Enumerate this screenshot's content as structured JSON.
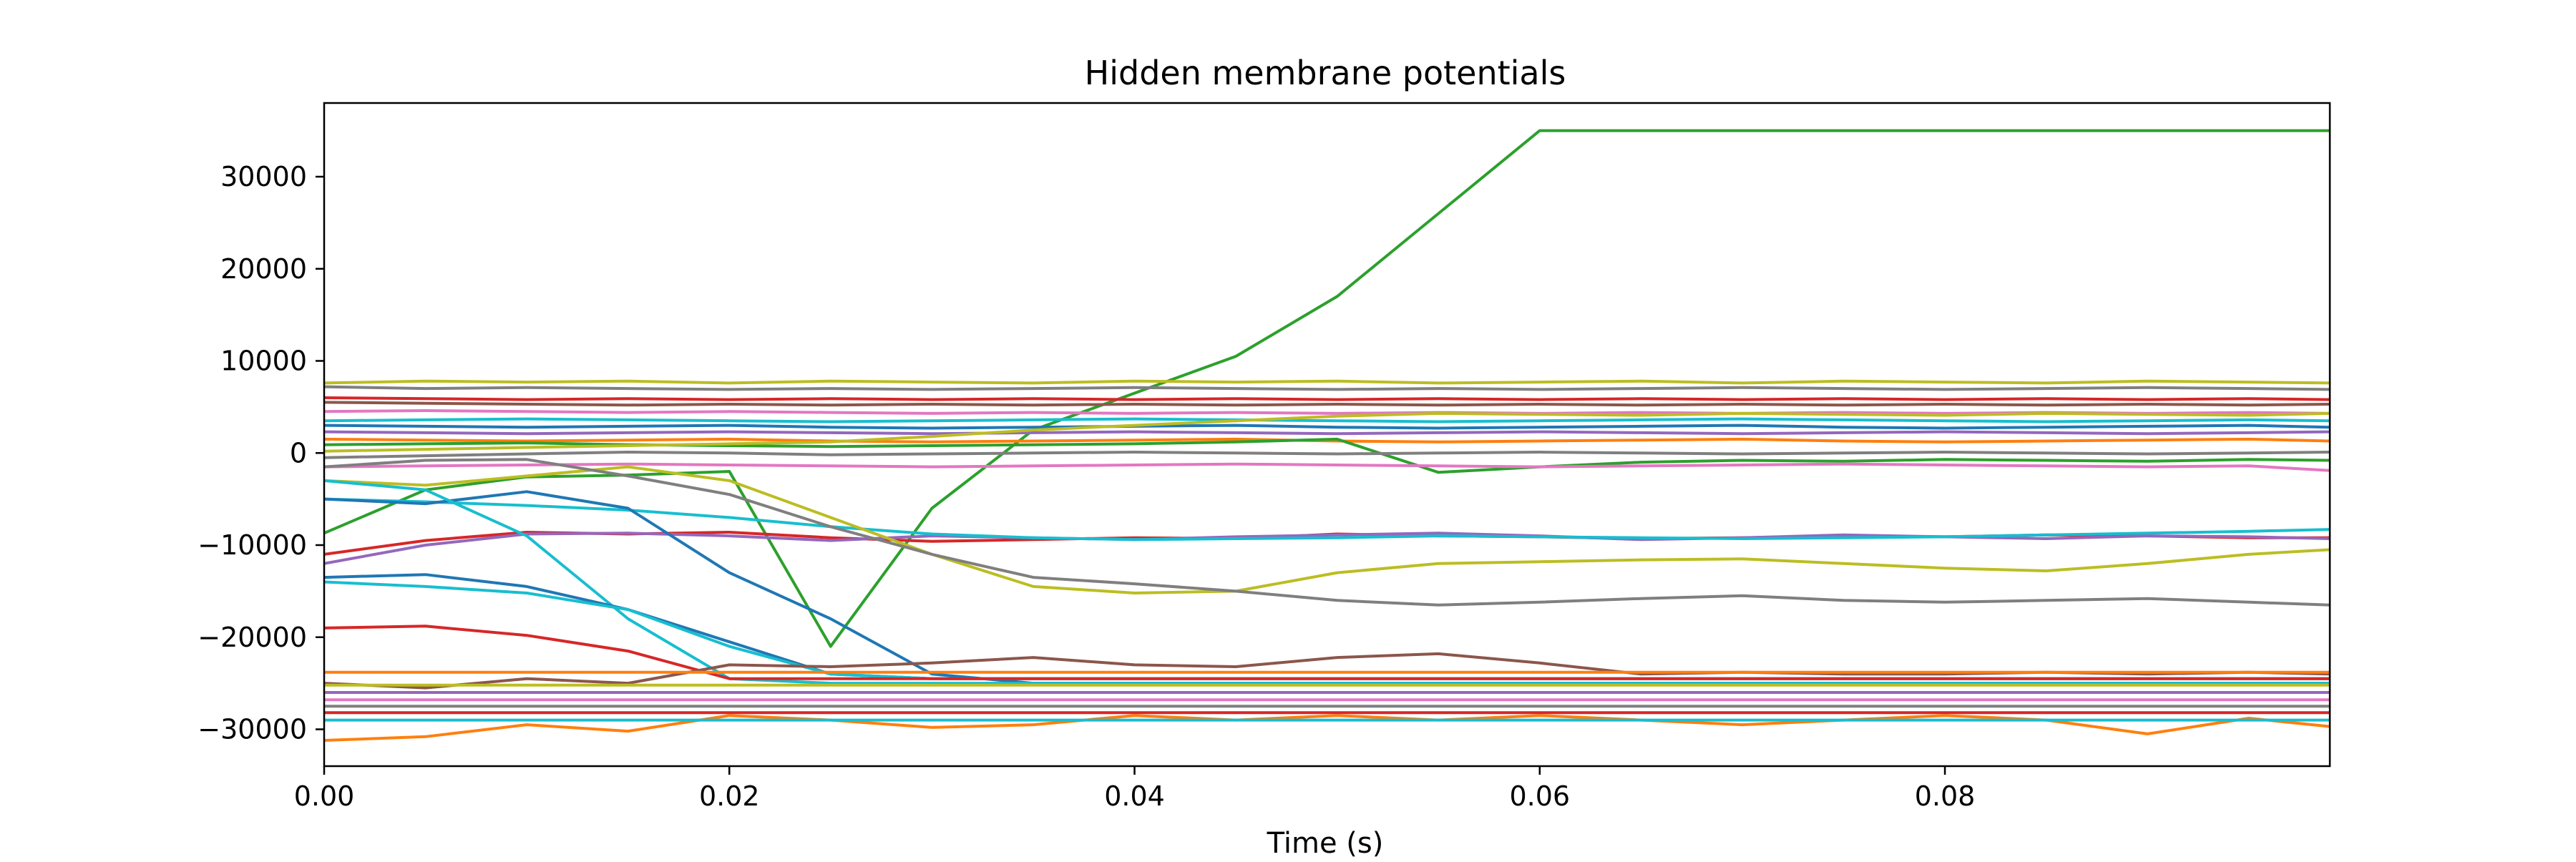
{
  "chart_data": {
    "type": "line",
    "title": "Hidden membrane potentials",
    "xlabel": "Time (s)",
    "ylabel": "",
    "xlim": [
      0.0,
      0.099
    ],
    "ylim": [
      -34000,
      38000
    ],
    "xticks": [
      0.0,
      0.02,
      0.04,
      0.06,
      0.08
    ],
    "xtick_labels": [
      "0.00",
      "0.02",
      "0.04",
      "0.06",
      "0.08"
    ],
    "yticks": [
      30000,
      20000,
      10000,
      0,
      -10000,
      -20000,
      -30000
    ],
    "ytick_labels": [
      "30000",
      "20000",
      "10000",
      "0",
      "−10000",
      "−20000",
      "−30000"
    ],
    "grid": false,
    "legend": "none",
    "colors": [
      "#1f77b4",
      "#ff7f0e",
      "#2ca02c",
      "#d62728",
      "#9467bd",
      "#8c564b",
      "#e377c2",
      "#7f7f7f",
      "#bcbd22",
      "#17becf"
    ],
    "x": [
      0.0,
      0.005,
      0.01,
      0.015,
      0.02,
      0.025,
      0.03,
      0.035,
      0.04,
      0.045,
      0.05,
      0.055,
      0.06,
      0.065,
      0.07,
      0.075,
      0.08,
      0.085,
      0.09,
      0.095,
      0.099
    ],
    "series": [
      {
        "color": "#2ca02c",
        "values": [
          -8700,
          -4000,
          -2600,
          -2400,
          -2000,
          -21000,
          -6000,
          2500,
          6500,
          10500,
          17000,
          26000,
          35000,
          35000,
          35000,
          35000,
          35000,
          35000,
          35000,
          35000,
          35000
        ]
      },
      {
        "color": "#bcbd22",
        "values": [
          7600,
          7800,
          7700,
          7800,
          7600,
          7800,
          7700,
          7600,
          7800,
          7700,
          7800,
          7600,
          7700,
          7800,
          7600,
          7800,
          7700,
          7600,
          7800,
          7700,
          7600
        ]
      },
      {
        "color": "#7f7f7f",
        "values": [
          7200,
          7000,
          7100,
          7000,
          6900,
          7000,
          6900,
          7000,
          7100,
          7000,
          6900,
          7000,
          6900,
          7000,
          7100,
          7000,
          6900,
          7000,
          7100,
          7000,
          6900
        ]
      },
      {
        "color": "#d62728",
        "values": [
          6000,
          5900,
          5800,
          5900,
          5800,
          5900,
          5800,
          5900,
          5800,
          5900,
          5800,
          5900,
          5800,
          5900,
          5800,
          5900,
          5800,
          5900,
          5800,
          5900,
          5800
        ]
      },
      {
        "color": "#8c564b",
        "values": [
          5500,
          5400,
          5300,
          5200,
          5300,
          5200,
          5300,
          5200,
          5300,
          5200,
          5300,
          5200,
          5300,
          5200,
          5300,
          5200,
          5300,
          5200,
          5300,
          5200,
          5300
        ]
      },
      {
        "color": "#e377c2",
        "values": [
          4500,
          4600,
          4500,
          4400,
          4500,
          4400,
          4300,
          4400,
          4300,
          4400,
          4300,
          4400,
          4300,
          4400,
          4300,
          4400,
          4300,
          4400,
          4300,
          4400,
          4300
        ]
      },
      {
        "color": "#17becf",
        "values": [
          3500,
          3600,
          3700,
          3600,
          3500,
          3400,
          3500,
          3600,
          3700,
          3600,
          3500,
          3400,
          3500,
          3600,
          3700,
          3600,
          3500,
          3400,
          3500,
          3600,
          3500
        ]
      },
      {
        "color": "#1f77b4",
        "values": [
          3000,
          2900,
          2800,
          2900,
          3000,
          2800,
          2700,
          2800,
          2900,
          3000,
          2800,
          2700,
          2800,
          2900,
          3000,
          2800,
          2700,
          2800,
          2900,
          3000,
          2800
        ]
      },
      {
        "color": "#9467bd",
        "values": [
          2300,
          2200,
          2100,
          2200,
          2300,
          2200,
          2100,
          2200,
          2300,
          2200,
          2100,
          2200,
          2300,
          2200,
          2100,
          2200,
          2300,
          2200,
          2100,
          2200,
          2300
        ]
      },
      {
        "color": "#ff7f0e",
        "values": [
          1500,
          1400,
          1300,
          1400,
          1500,
          1300,
          1200,
          1300,
          1400,
          1500,
          1300,
          1200,
          1300,
          1400,
          1500,
          1300,
          1200,
          1300,
          1400,
          1500,
          1300
        ]
      },
      {
        "color": "#2ca02c",
        "values": [
          900,
          1000,
          1100,
          900,
          800,
          700,
          800,
          900,
          1000,
          1200,
          1500,
          -2100,
          -1500,
          -1000,
          -800,
          -900,
          -700,
          -800,
          -900,
          -700,
          -800
        ]
      },
      {
        "color": "#bcbd22",
        "values": [
          200,
          400,
          600,
          800,
          1000,
          1200,
          1800,
          2500,
          3000,
          3500,
          4000,
          4300,
          4200,
          4100,
          4300,
          4200,
          4100,
          4300,
          4200,
          4100,
          4300
        ]
      },
      {
        "color": "#7f7f7f",
        "values": [
          -500,
          -300,
          -100,
          100,
          0,
          -200,
          -100,
          0,
          100,
          0,
          -100,
          0,
          100,
          0,
          -100,
          0,
          100,
          0,
          -100,
          0,
          100
        ]
      },
      {
        "color": "#e377c2",
        "values": [
          -1500,
          -1400,
          -1300,
          -1200,
          -1300,
          -1400,
          -1500,
          -1400,
          -1300,
          -1200,
          -1300,
          -1400,
          -1500,
          -1400,
          -1300,
          -1200,
          -1300,
          -1400,
          -1500,
          -1400,
          -1900
        ]
      },
      {
        "color": "#d62728",
        "values": [
          -11000,
          -9500,
          -8600,
          -8800,
          -8600,
          -9200,
          -9600,
          -9400,
          -9200,
          -9300,
          -8800,
          -9000,
          -9100,
          -9300,
          -9200,
          -9000,
          -9100,
          -8900,
          -9000,
          -9200,
          -9200
        ]
      },
      {
        "color": "#9467bd",
        "values": [
          -12000,
          -10000,
          -8800,
          -8700,
          -9000,
          -9500,
          -9000,
          -9200,
          -9400,
          -9100,
          -8900,
          -8700,
          -9000,
          -9400,
          -9200,
          -8900,
          -9100,
          -9300,
          -9000,
          -9100,
          -9300
        ]
      },
      {
        "color": "#17becf",
        "values": [
          -5000,
          -5300,
          -5700,
          -6200,
          -7000,
          -8000,
          -8800,
          -9200,
          -9400,
          -9300,
          -9200,
          -9000,
          -9100,
          -9200,
          -9300,
          -9200,
          -9100,
          -8900,
          -8700,
          -8500,
          -8300
        ]
      },
      {
        "color": "#bcbd22",
        "values": [
          -3000,
          -3500,
          -2500,
          -1500,
          -3000,
          -7000,
          -11000,
          -14500,
          -15200,
          -15000,
          -13000,
          -12000,
          -11800,
          -11600,
          -11500,
          -12000,
          -12500,
          -12800,
          -12000,
          -11000,
          -10500
        ]
      },
      {
        "color": "#7f7f7f",
        "values": [
          -1500,
          -800,
          -700,
          -2500,
          -4500,
          -8000,
          -11000,
          -13500,
          -14200,
          -15000,
          -16000,
          -16500,
          -16200,
          -15800,
          -15500,
          -16000,
          -16200,
          -16000,
          -15800,
          -16200,
          -16500
        ]
      },
      {
        "color": "#1f77b4",
        "values": [
          -5000,
          -5500,
          -4200,
          -6000,
          -13000,
          -18000,
          -24000,
          -25000,
          -25000,
          -25000,
          -25000,
          -25000,
          -25000,
          -25000,
          -25000,
          -25000,
          -25000,
          -25000,
          -25000,
          -25000,
          -25000
        ]
      },
      {
        "color": "#17becf",
        "values": [
          -3000,
          -4000,
          -9000,
          -18000,
          -24500,
          -25000,
          -25000,
          -25000,
          -25000,
          -25000,
          -25000,
          -25000,
          -25000,
          -25000,
          -25000,
          -25000,
          -25000,
          -25000,
          -25000,
          -25000,
          -25000
        ]
      },
      {
        "color": "#1f77b4",
        "values": [
          -13500,
          -13200,
          -14500,
          -17000,
          -20500,
          -24000,
          -24500,
          -24500,
          -24500,
          -24500,
          -24500,
          -24500,
          -24500,
          -24500,
          -24500,
          -24500,
          -24500,
          -24500,
          -24500,
          -24500,
          -24500
        ]
      },
      {
        "color": "#17becf",
        "values": [
          -14000,
          -14500,
          -15200,
          -17000,
          -21000,
          -24000,
          -24500,
          -24500,
          -24500,
          -24500,
          -24500,
          -24500,
          -24500,
          -24500,
          -24500,
          -24500,
          -24500,
          -24500,
          -24500,
          -24500,
          -24500
        ]
      },
      {
        "color": "#d62728",
        "values": [
          -19000,
          -18800,
          -19800,
          -21500,
          -24500,
          -24500,
          -24500,
          -24500,
          -24500,
          -24500,
          -24500,
          -24500,
          -24500,
          -24500,
          -24500,
          -24500,
          -24500,
          -24500,
          -24500,
          -24500,
          -24500
        ]
      },
      {
        "color": "#8c564b",
        "values": [
          -25000,
          -25500,
          -24500,
          -25000,
          -23000,
          -23200,
          -22800,
          -22200,
          -23000,
          -23200,
          -22200,
          -21800,
          -22800,
          -24000,
          -23800,
          -24000,
          -24000,
          -23800,
          -24000,
          -23800,
          -24000
        ]
      },
      {
        "color": "#ff7f0e",
        "values": [
          -31200,
          -30800,
          -29500,
          -30200,
          -28500,
          -29000,
          -29800,
          -29500,
          -28500,
          -29000,
          -28500,
          -29000,
          -28500,
          -29000,
          -29500,
          -29000,
          -28500,
          -29000,
          -30500,
          -28800,
          -29700
        ]
      },
      {
        "color": "#ff7f0e",
        "values": [
          -23800,
          -23800,
          -23800,
          -23800,
          -23800,
          -23800,
          -23800,
          -23800,
          -23800,
          -23800,
          -23800,
          -23800,
          -23800,
          -23800,
          -23800,
          -23800,
          -23800,
          -23800,
          -23800,
          -23800,
          -23800
        ]
      },
      {
        "color": "#bcbd22",
        "values": [
          -25200,
          -25200,
          -25200,
          -25200,
          -25200,
          -25200,
          -25200,
          -25200,
          -25200,
          -25200,
          -25200,
          -25200,
          -25200,
          -25200,
          -25200,
          -25200,
          -25200,
          -25200,
          -25200,
          -25200,
          -25200
        ]
      },
      {
        "color": "#9467bd",
        "values": [
          -26000,
          -26000,
          -26000,
          -26000,
          -26000,
          -26000,
          -26000,
          -26000,
          -26000,
          -26000,
          -26000,
          -26000,
          -26000,
          -26000,
          -26000,
          -26000,
          -26000,
          -26000,
          -26000,
          -26000,
          -26000
        ]
      },
      {
        "color": "#e377c2",
        "values": [
          -26800,
          -26800,
          -26800,
          -26800,
          -26800,
          -26800,
          -26800,
          -26800,
          -26800,
          -26800,
          -26800,
          -26800,
          -26800,
          -26800,
          -26800,
          -26800,
          -26800,
          -26800,
          -26800,
          -26800,
          -26800
        ]
      },
      {
        "color": "#7f7f7f",
        "values": [
          -27500,
          -27500,
          -27500,
          -27500,
          -27500,
          -27500,
          -27500,
          -27500,
          -27500,
          -27500,
          -27500,
          -27500,
          -27500,
          -27500,
          -27500,
          -27500,
          -27500,
          -27500,
          -27500,
          -27500,
          -27500
        ]
      },
      {
        "color": "#d62728",
        "values": [
          -28200,
          -28200,
          -28200,
          -28200,
          -28200,
          -28200,
          -28200,
          -28200,
          -28200,
          -28200,
          -28200,
          -28200,
          -28200,
          -28200,
          -28200,
          -28200,
          -28200,
          -28200,
          -28200,
          -28200,
          -28200
        ]
      },
      {
        "color": "#17becf",
        "values": [
          -29000,
          -29000,
          -29000,
          -29000,
          -29000,
          -29000,
          -29000,
          -29000,
          -29000,
          -29000,
          -29000,
          -29000,
          -29000,
          -29000,
          -29000,
          -29000,
          -29000,
          -29000,
          -29000,
          -29000,
          -29000
        ]
      }
    ]
  }
}
